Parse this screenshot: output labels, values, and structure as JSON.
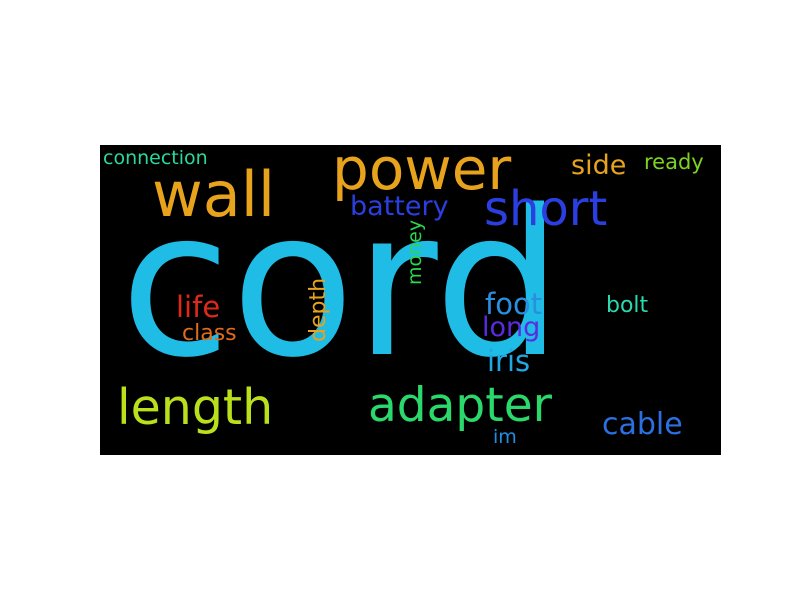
{
  "wordcloud": {
    "background": "#000000",
    "words": [
      {
        "key": "cord",
        "text": "cord",
        "color": "#1fbce6"
      },
      {
        "key": "power",
        "text": "power",
        "color": "#e8a31c"
      },
      {
        "key": "wall",
        "text": "wall",
        "color": "#e8a31c"
      },
      {
        "key": "short",
        "text": "short",
        "color": "#2b3fe0"
      },
      {
        "key": "battery",
        "text": "battery",
        "color": "#2b3fe0"
      },
      {
        "key": "length",
        "text": "length",
        "color": "#b9e01a"
      },
      {
        "key": "adapter",
        "text": "adapter",
        "color": "#2bd86c"
      },
      {
        "key": "connection",
        "text": "connection",
        "color": "#2bd89a"
      },
      {
        "key": "side",
        "text": "side",
        "color": "#e8a31c"
      },
      {
        "key": "ready",
        "text": "ready",
        "color": "#7ed321"
      },
      {
        "key": "money",
        "text": "money",
        "color": "#2bd84a"
      },
      {
        "key": "life",
        "text": "life",
        "color": "#e0281a"
      },
      {
        "key": "class",
        "text": "class",
        "color": "#e06b1a"
      },
      {
        "key": "depth",
        "text": "depth",
        "color": "#e8a31c"
      },
      {
        "key": "foot",
        "text": "foot",
        "color": "#2b8fe0"
      },
      {
        "key": "long",
        "text": "long",
        "color": "#5a2be0"
      },
      {
        "key": "iris",
        "text": "iris",
        "color": "#1fa8e6"
      },
      {
        "key": "bolt",
        "text": "bolt",
        "color": "#2bd8b0"
      },
      {
        "key": "cable",
        "text": "cable",
        "color": "#2b6fe0"
      },
      {
        "key": "im",
        "text": "im",
        "color": "#1f8ee6"
      }
    ]
  }
}
